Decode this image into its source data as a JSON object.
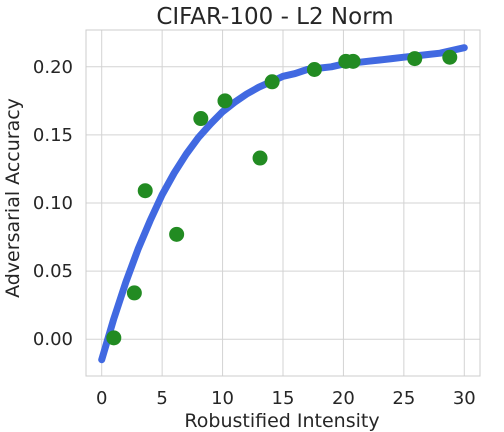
{
  "chart_data": {
    "type": "scatter",
    "title": "CIFAR-100 - L2 Norm",
    "xlabel": "Robustified Intensity",
    "ylabel": "Adversarial Accuracy",
    "xlim": [
      -1.3,
      31.3
    ],
    "ylim": [
      -0.027,
      0.227
    ],
    "xticks": [
      0,
      5,
      10,
      15,
      20,
      25,
      30
    ],
    "yticks": [
      0.0,
      0.05,
      0.1,
      0.15,
      0.2
    ],
    "xtick_labels": [
      "0",
      "5",
      "10",
      "15",
      "20",
      "25",
      "30"
    ],
    "ytick_labels": [
      "0.00",
      "0.05",
      "0.10",
      "0.15",
      "0.20"
    ],
    "grid": true,
    "series": [
      {
        "kind": "points",
        "color": "#228b22",
        "x": [
          1.0,
          2.7,
          3.6,
          6.2,
          8.2,
          10.2,
          13.1,
          14.1,
          17.6,
          20.2,
          20.8,
          25.9,
          28.8
        ],
        "y": [
          0.001,
          0.034,
          0.109,
          0.077,
          0.162,
          0.175,
          0.133,
          0.189,
          0.198,
          0.204,
          0.204,
          0.206,
          0.207
        ]
      },
      {
        "kind": "fit-curve",
        "color": "#4169e1",
        "x": [
          0,
          1,
          2,
          3,
          4,
          5,
          6,
          7,
          8,
          9,
          10,
          11,
          12,
          13,
          14,
          15,
          16,
          17,
          18,
          19,
          20,
          21,
          22,
          23,
          24,
          25,
          26,
          27,
          28,
          29,
          30
        ],
        "y": [
          -0.015,
          0.015,
          0.042,
          0.066,
          0.087,
          0.106,
          0.122,
          0.136,
          0.148,
          0.158,
          0.167,
          0.174,
          0.18,
          0.185,
          0.189,
          0.193,
          0.195,
          0.198,
          0.199,
          0.2,
          0.202,
          0.203,
          0.204,
          0.205,
          0.206,
          0.207,
          0.208,
          0.209,
          0.21,
          0.212,
          0.214
        ]
      }
    ]
  }
}
